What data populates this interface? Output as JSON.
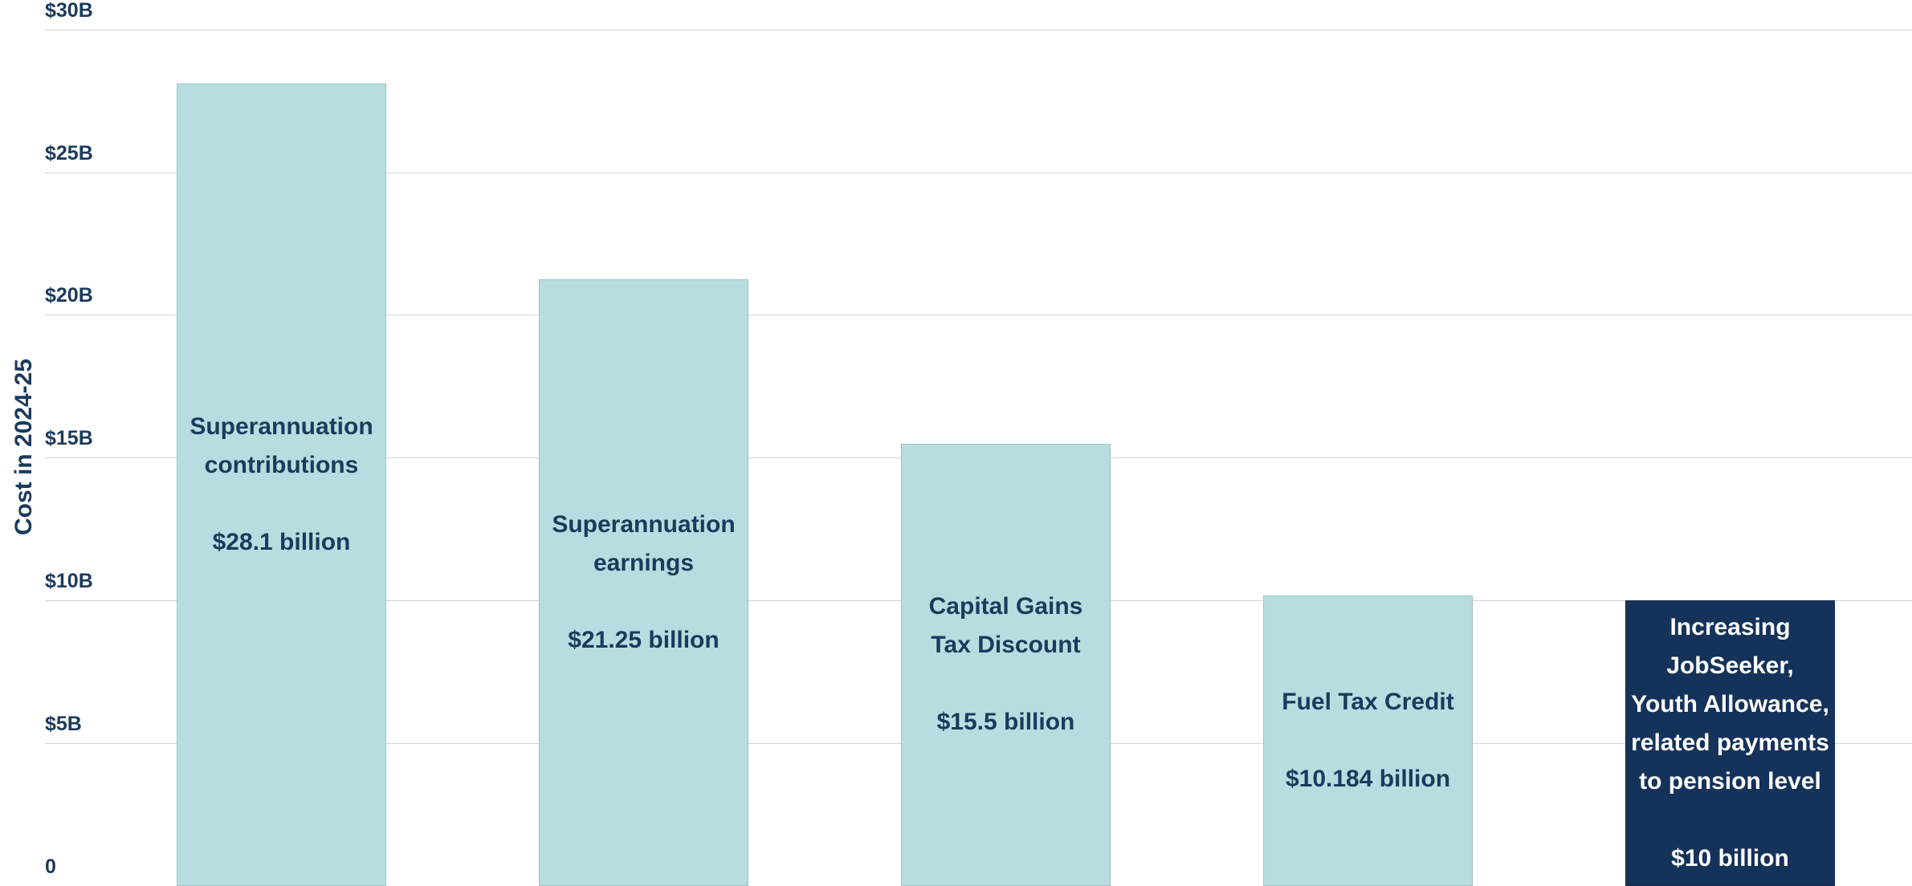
{
  "chart_data": {
    "type": "bar",
    "y_axis_label": "Cost in 2024-25",
    "categories": [
      "Superannuation contributions",
      "Superannuation earnings",
      "Capital Gains Tax Discount",
      "Fuel Tax Credit",
      "Increasing JobSeeker, Youth Allowance, related payments to pension level"
    ],
    "values": [
      28.1,
      21.25,
      15.5,
      10.184,
      10
    ],
    "value_labels": [
      "$28.1 billion",
      "$21.25 billion",
      "$15.5 billion",
      "$10.184 billion",
      "$10 billion"
    ],
    "colors": [
      "#b7dde0",
      "#b7dde0",
      "#b7dde0",
      "#b7dde0",
      "#15325a"
    ],
    "label_colors": [
      "#1b3a5c",
      "#1b3a5c",
      "#1b3a5c",
      "#1b3a5c",
      "#ffffff"
    ],
    "ylim": [
      0,
      30
    ],
    "yticks": [
      0,
      {
        "value": 5,
        "label": "$5B"
      },
      {
        "value": 10,
        "label": "$10B"
      },
      {
        "value": 15,
        "label": "$15B"
      },
      {
        "value": 20,
        "label": "$20B"
      },
      {
        "value": 25,
        "label": "$25B"
      },
      {
        "value": 30,
        "label": "$30B"
      }
    ],
    "grid": true
  }
}
